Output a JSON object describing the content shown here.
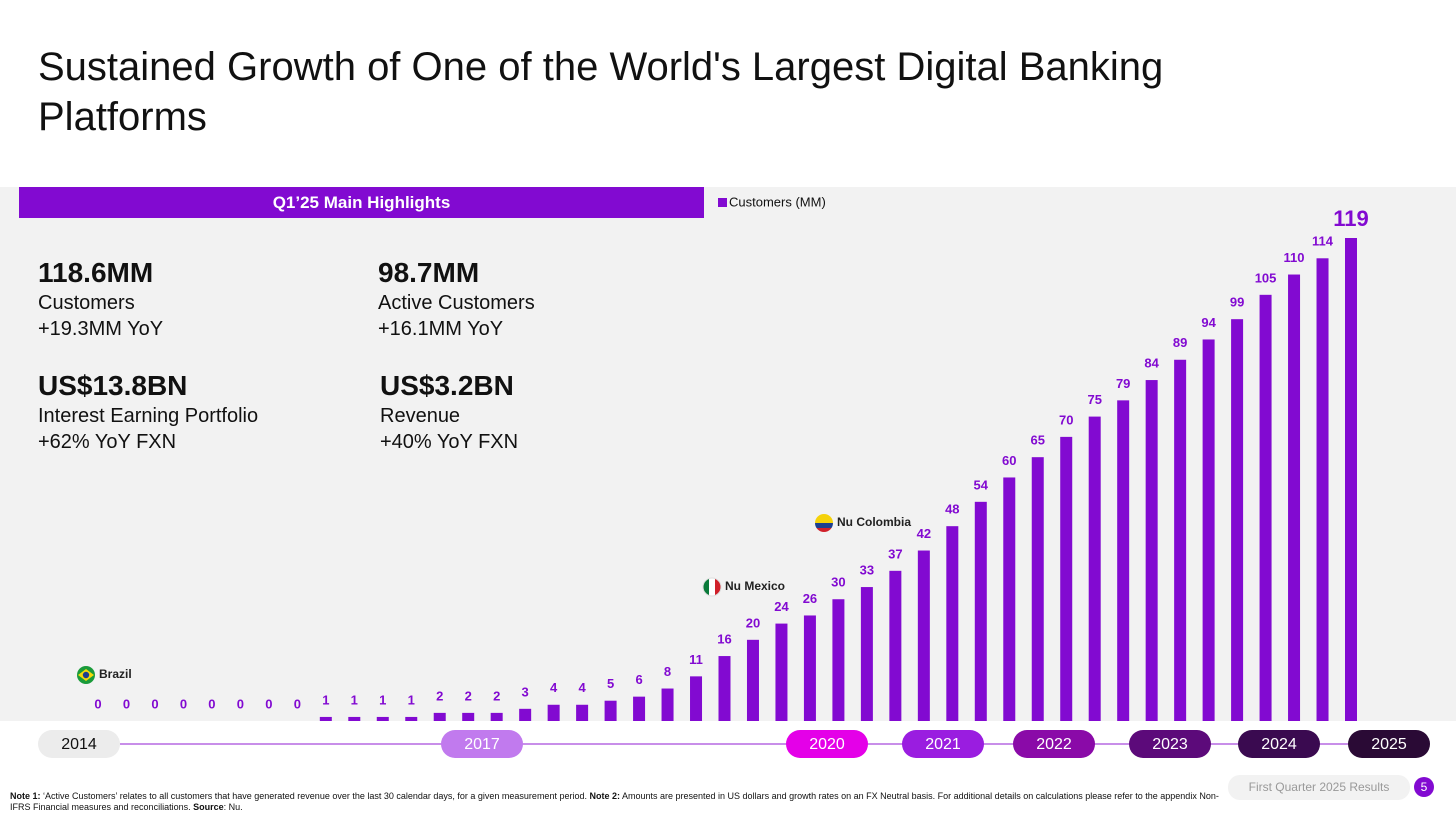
{
  "header": {
    "title": "Sustained Growth of One of the World's Largest Digital Banking Platforms"
  },
  "highlights": {
    "title": "Q1’25 Main Highlights",
    "items": [
      {
        "value": "118.6MM",
        "label": "Customers",
        "change": "+19.3MM YoY"
      },
      {
        "value": "98.7MM",
        "label": "Active Customers",
        "change": "+16.1MM YoY"
      },
      {
        "value": "US$13.8BN",
        "label": "Interest Earning Portfolio",
        "change": "+62% YoY FXN"
      },
      {
        "value": "US$3.2BN",
        "label": "Revenue",
        "change": "+40% YoY FXN"
      }
    ]
  },
  "chart_data": {
    "type": "bar",
    "series": [
      {
        "name": "Customers (MM)",
        "color": "#820ad1",
        "values": [
          0,
          0,
          0,
          0,
          0,
          0,
          0,
          0,
          1,
          1,
          1,
          1,
          2,
          2,
          2,
          3,
          4,
          4,
          5,
          6,
          8,
          11,
          16,
          20,
          24,
          26,
          30,
          33,
          37,
          42,
          48,
          54,
          60,
          65,
          70,
          75,
          79,
          84,
          89,
          94,
          99,
          105,
          110,
          114,
          119
        ]
      }
    ],
    "annotations": [
      "Brazil",
      "Nu Mexico",
      "Nu Colombia"
    ],
    "years": [
      "2014",
      "2017",
      "2020",
      "2021",
      "2022",
      "2023",
      "2024",
      "2025"
    ]
  },
  "footer": {
    "notes": [
      "Note 1:",
      " ‘Active Customers’ relates to all customers that have generated revenue over the last 30 calendar days, for a given measurement period. ",
      "Note 2:",
      " Amounts are presented in US dollars and growth rates on an FX Neutral basis. For additional details on calculations please refer to the appendix Non-IFRS Financial measures and reconciliations. ",
      "Source",
      ": Nu."
    ],
    "label": "First Quarter 2025 Results",
    "page": "5"
  }
}
